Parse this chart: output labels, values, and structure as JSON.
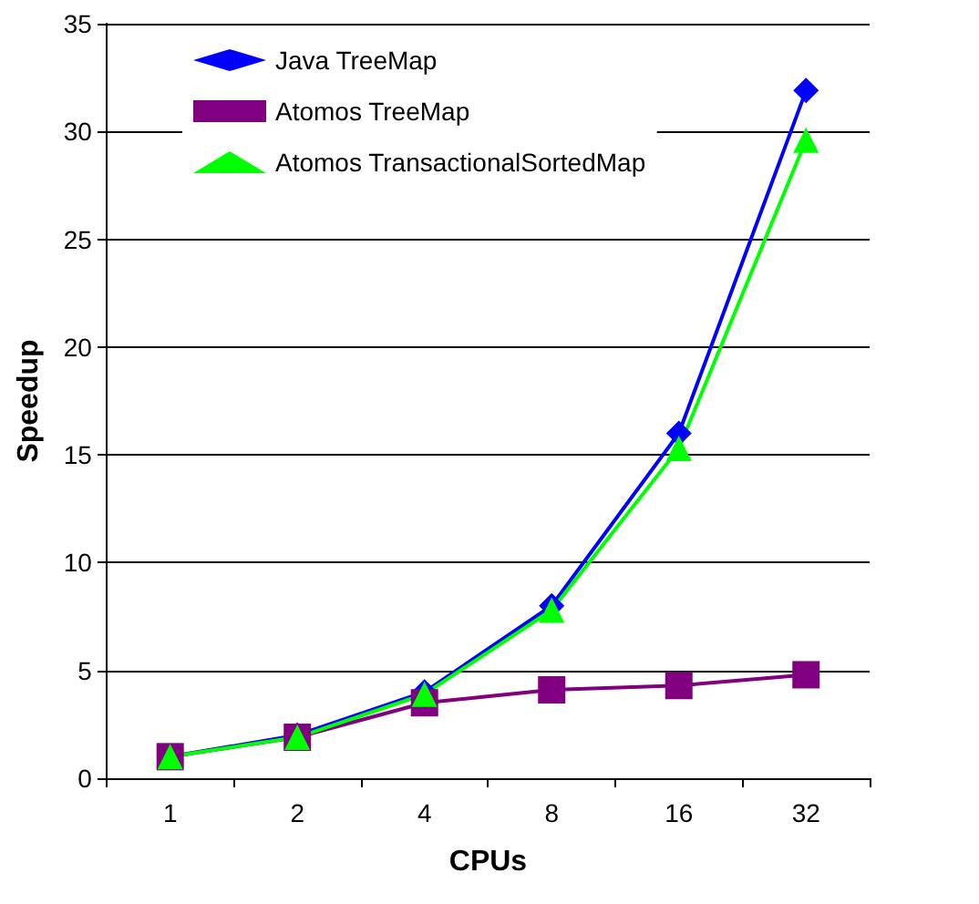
{
  "chart_data": {
    "type": "line",
    "xlabel": "CPUs",
    "ylabel": "Speedup",
    "categories": [
      "1",
      "2",
      "4",
      "8",
      "16",
      "32"
    ],
    "series": [
      {
        "name": "Java TreeMap",
        "color": "#0000ff",
        "marker": "diamond",
        "values": [
          1,
          2,
          4,
          8,
          16,
          31.9
        ]
      },
      {
        "name": "Atomos TreeMap",
        "color": "#800080",
        "marker": "square",
        "values": [
          1,
          1.9,
          3.5,
          4.1,
          4.3,
          4.8
        ]
      },
      {
        "name": "Atomos TransactionalSortedMap",
        "color": "#00ff00",
        "marker": "triangle",
        "values": [
          1,
          1.9,
          3.9,
          7.8,
          15.3,
          29.6
        ]
      }
    ],
    "ylim": [
      0,
      35
    ],
    "yticks": [
      0,
      5,
      10,
      15,
      20,
      25,
      30,
      35
    ],
    "grid": "y",
    "legend": "top left",
    "line_style": "solid"
  }
}
